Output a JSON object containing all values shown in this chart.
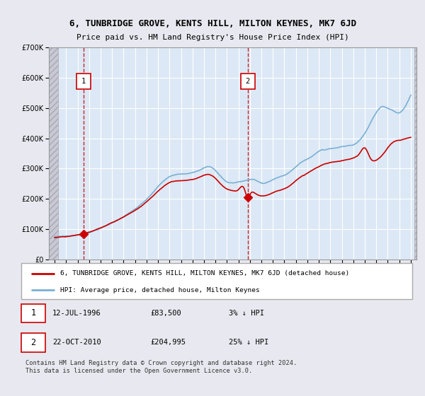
{
  "title": "6, TUNBRIDGE GROVE, KENTS HILL, MILTON KEYNES, MK7 6JD",
  "subtitle": "Price paid vs. HM Land Registry's House Price Index (HPI)",
  "legend_line1": "6, TUNBRIDGE GROVE, KENTS HILL, MILTON KEYNES, MK7 6JD (detached house)",
  "legend_line2": "HPI: Average price, detached house, Milton Keynes",
  "annotation1_label": "1",
  "annotation1_date": "12-JUL-1996",
  "annotation1_price": "£83,500",
  "annotation1_hpi": "3% ↓ HPI",
  "annotation2_label": "2",
  "annotation2_date": "22-OCT-2010",
  "annotation2_price": "£204,995",
  "annotation2_hpi": "25% ↓ HPI",
  "footer": "Contains HM Land Registry data © Crown copyright and database right 2024.\nThis data is licensed under the Open Government Licence v3.0.",
  "sale1_x": 1996.54,
  "sale1_y": 83500,
  "sale2_x": 2010.81,
  "sale2_y": 204995,
  "vline1_x": 1996.54,
  "vline2_x": 2010.81,
  "red_color": "#cc0000",
  "blue_color": "#7ab0d4",
  "hatch_color": "#cccccc",
  "background_color": "#e8e8f0",
  "plot_bg_color": "#dce8f5",
  "ylim": [
    0,
    700000
  ],
  "xlim_start": 1993.5,
  "xlim_end": 2025.5,
  "hatch_end": 1994.3
}
